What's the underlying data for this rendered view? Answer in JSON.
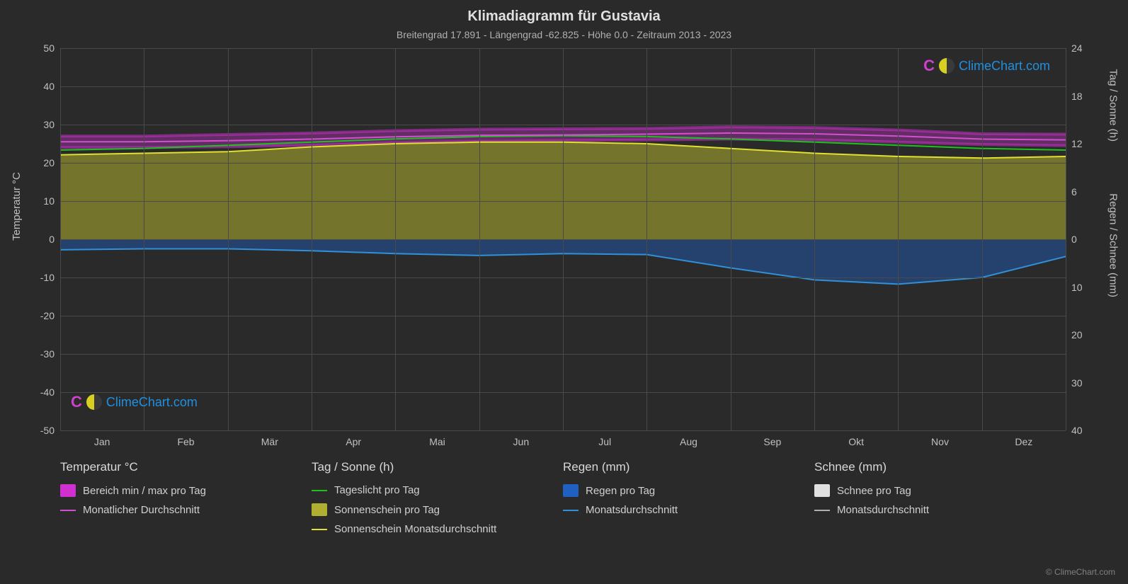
{
  "title": "Klimadiagramm für Gustavia",
  "subtitle": "Breitengrad 17.891 - Längengrad -62.825 - Höhe 0.0 - Zeitraum 2013 - 2023",
  "axis_left_label": "Temperatur °C",
  "axis_right_top_label": "Tag / Sonne (h)",
  "axis_right_bottom_label": "Regen / Schnee (mm)",
  "copyright": "© ClimeChart.com",
  "watermark_text": "ClimeChart.com",
  "months": [
    "Jan",
    "Feb",
    "Mär",
    "Apr",
    "Mai",
    "Jun",
    "Jul",
    "Aug",
    "Sep",
    "Okt",
    "Nov",
    "Dez"
  ],
  "left_axis": {
    "min": -50,
    "max": 50,
    "step": 10,
    "ticks": [
      50,
      40,
      30,
      20,
      10,
      0,
      -10,
      -20,
      -30,
      -40,
      -50
    ]
  },
  "right_axis_top": {
    "min": 0,
    "max": 24,
    "step": 6,
    "ticks": [
      24,
      18,
      12,
      6,
      0
    ]
  },
  "right_axis_bottom": {
    "min": 0,
    "max": 40,
    "step": 10,
    "ticks": [
      0,
      10,
      20,
      30,
      40
    ]
  },
  "colors": {
    "background": "#2a2a2a",
    "grid": "#4a4a4a",
    "text": "#d0d0d0",
    "temp_range": "#d030d0",
    "temp_avg": "#d050d0",
    "daylight": "#20c020",
    "sunshine_fill": "#b0b030",
    "sunshine_line": "#e0e030",
    "rain_fill": "#2060c0",
    "rain_line": "#3090d8",
    "snow_fill": "#e0e0e0",
    "snow_line": "#b0b0b0"
  },
  "legend": {
    "columns": [
      {
        "header": "Temperatur °C",
        "items": [
          {
            "type": "swatch",
            "color": "#d030d0",
            "label": "Bereich min / max pro Tag"
          },
          {
            "type": "line",
            "color": "#d050d0",
            "label": "Monatlicher Durchschnitt"
          }
        ]
      },
      {
        "header": "Tag / Sonne (h)",
        "items": [
          {
            "type": "line",
            "color": "#20c020",
            "label": "Tageslicht pro Tag"
          },
          {
            "type": "swatch",
            "color": "#b0b030",
            "label": "Sonnenschein pro Tag"
          },
          {
            "type": "line",
            "color": "#e0e030",
            "label": "Sonnenschein Monatsdurchschnitt"
          }
        ]
      },
      {
        "header": "Regen (mm)",
        "items": [
          {
            "type": "swatch",
            "color": "#2060c0",
            "label": "Regen pro Tag"
          },
          {
            "type": "line",
            "color": "#3090d8",
            "label": "Monatsdurchschnitt"
          }
        ]
      },
      {
        "header": "Schnee (mm)",
        "items": [
          {
            "type": "swatch",
            "color": "#e0e0e0",
            "label": "Schnee pro Tag"
          },
          {
            "type": "line",
            "color": "#b0b0b0",
            "label": "Monatsdurchschnitt"
          }
        ]
      }
    ]
  },
  "series": {
    "temp_avg_c": [
      25.5,
      25.5,
      25.8,
      26.2,
      26.8,
      27.2,
      27.3,
      27.5,
      27.8,
      27.6,
      27.0,
      26.2,
      26.0
    ],
    "temp_min_c": [
      24.0,
      24.0,
      24.2,
      24.6,
      25.2,
      25.6,
      25.8,
      26.0,
      26.2,
      26.0,
      25.4,
      24.8,
      24.5
    ],
    "temp_max_c": [
      27.0,
      27.0,
      27.4,
      27.8,
      28.4,
      28.8,
      28.9,
      29.0,
      29.4,
      29.2,
      28.6,
      27.6,
      27.5
    ],
    "daylight_h": [
      11.2,
      11.4,
      11.8,
      12.2,
      12.6,
      12.9,
      13.0,
      12.9,
      12.6,
      12.2,
      11.8,
      11.4,
      11.2
    ],
    "sunshine_avg_h": [
      10.6,
      10.8,
      11.0,
      11.6,
      12.0,
      12.2,
      12.2,
      12.0,
      11.4,
      10.8,
      10.4,
      10.2,
      10.4
    ],
    "rain_avg_mm": [
      2.2,
      2.0,
      2.0,
      2.4,
      3.0,
      3.4,
      3.0,
      3.2,
      6.0,
      8.5,
      9.4,
      8.0,
      3.6
    ],
    "snow_avg_mm": [
      0,
      0,
      0,
      0,
      0,
      0,
      0,
      0,
      0,
      0,
      0,
      0,
      0
    ]
  }
}
